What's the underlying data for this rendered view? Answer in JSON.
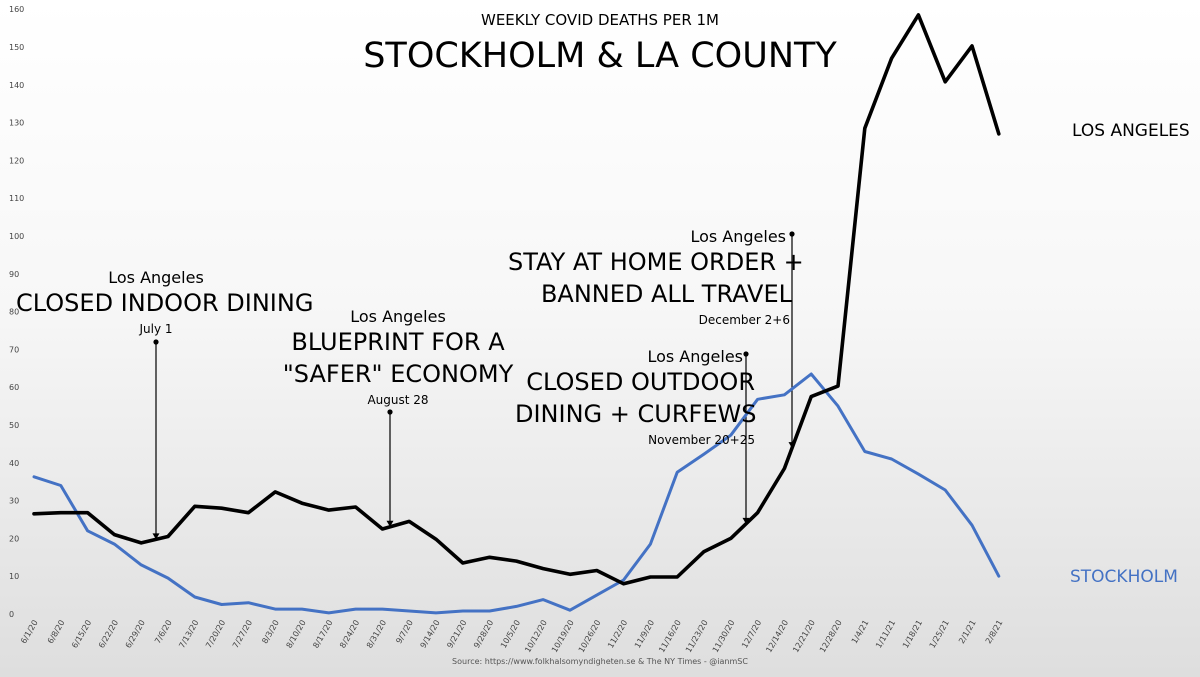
{
  "title": "WEEKLY COVID DEATHS PER 1M",
  "subtitle": "STOCKHOLM & LA COUNTY",
  "source": "Source: https://www.folkhalsomyndigheten.se & The NY Times - @ianmSC",
  "colors": {
    "los_angeles": "#000000",
    "stockholm": "#4472c4"
  },
  "chart_data": {
    "type": "line",
    "title": "WEEKLY COVID DEATHS PER 1M",
    "subtitle": "STOCKHOLM & LA COUNTY",
    "xlabel": "",
    "ylabel": "",
    "ylim": [
      0,
      160
    ],
    "yticks": [
      0,
      10,
      20,
      30,
      40,
      50,
      60,
      70,
      80,
      90,
      100,
      110,
      120,
      130,
      140,
      150,
      160
    ],
    "grid": false,
    "legend": "direct labels at line ends",
    "categories": [
      "6/1/20",
      "6/8/20",
      "6/15/20",
      "6/22/20",
      "6/29/20",
      "7/6/20",
      "7/13/20",
      "7/20/20",
      "7/27/20",
      "8/3/20",
      "8/10/20",
      "8/17/20",
      "8/24/20",
      "8/31/20",
      "9/7/20",
      "9/14/20",
      "9/21/20",
      "9/28/20",
      "10/5/20",
      "10/12/20",
      "10/19/20",
      "10/26/20",
      "11/2/20",
      "11/9/20",
      "11/16/20",
      "11/23/20",
      "11/30/20",
      "12/7/20",
      "12/14/20",
      "12/21/20",
      "12/28/20",
      "1/4/21",
      "1/11/21",
      "1/18/21",
      "1/25/21",
      "2/1/21",
      "2/8/21"
    ],
    "series": [
      {
        "name": "LOS ANGELES",
        "color": "#000000",
        "values": [
          26.5,
          26.8,
          26.8,
          21,
          18.8,
          20.5,
          28.5,
          28,
          26.8,
          32.3,
          29.3,
          27.5,
          28.3,
          22.5,
          24.5,
          19.8,
          13.5,
          15,
          14,
          12,
          10.5,
          11.5,
          8,
          9.8,
          9.8,
          16.5,
          20,
          26.8,
          38.5,
          57.5,
          60.3,
          128.5,
          147,
          158.5,
          140.8,
          150.3,
          127
        ]
      },
      {
        "name": "STOCKHOLM",
        "color": "#4472c4",
        "values": [
          36.3,
          34,
          22,
          18.5,
          13,
          9.5,
          4.5,
          2.5,
          3,
          1.3,
          1.3,
          0.3,
          1.3,
          1.3,
          0.8,
          0.3,
          0.8,
          0.8,
          2,
          3.8,
          1,
          5,
          9,
          18.5,
          37.5,
          42.3,
          47.3,
          56.8,
          58,
          63.5,
          55,
          43,
          41,
          37,
          32.8,
          23.5,
          10
        ]
      }
    ],
    "annotations": [
      {
        "who": "Los Angeles",
        "what": [
          "CLOSED INDOOR DINING"
        ],
        "when": "July 1"
      },
      {
        "who": "Los Angeles",
        "what": [
          "BLUEPRINT FOR A",
          "\"SAFER\" ECONOMY"
        ],
        "when": "August 28"
      },
      {
        "who": "Los Angeles",
        "what": [
          "CLOSED OUTDOOR",
          "DINING + CURFEWS"
        ],
        "when": "November 20+25"
      },
      {
        "who": "Los Angeles",
        "what": [
          "STAY AT HOME ORDER +",
          "BANNED ALL TRAVEL"
        ],
        "when": "December 2+6"
      }
    ]
  }
}
